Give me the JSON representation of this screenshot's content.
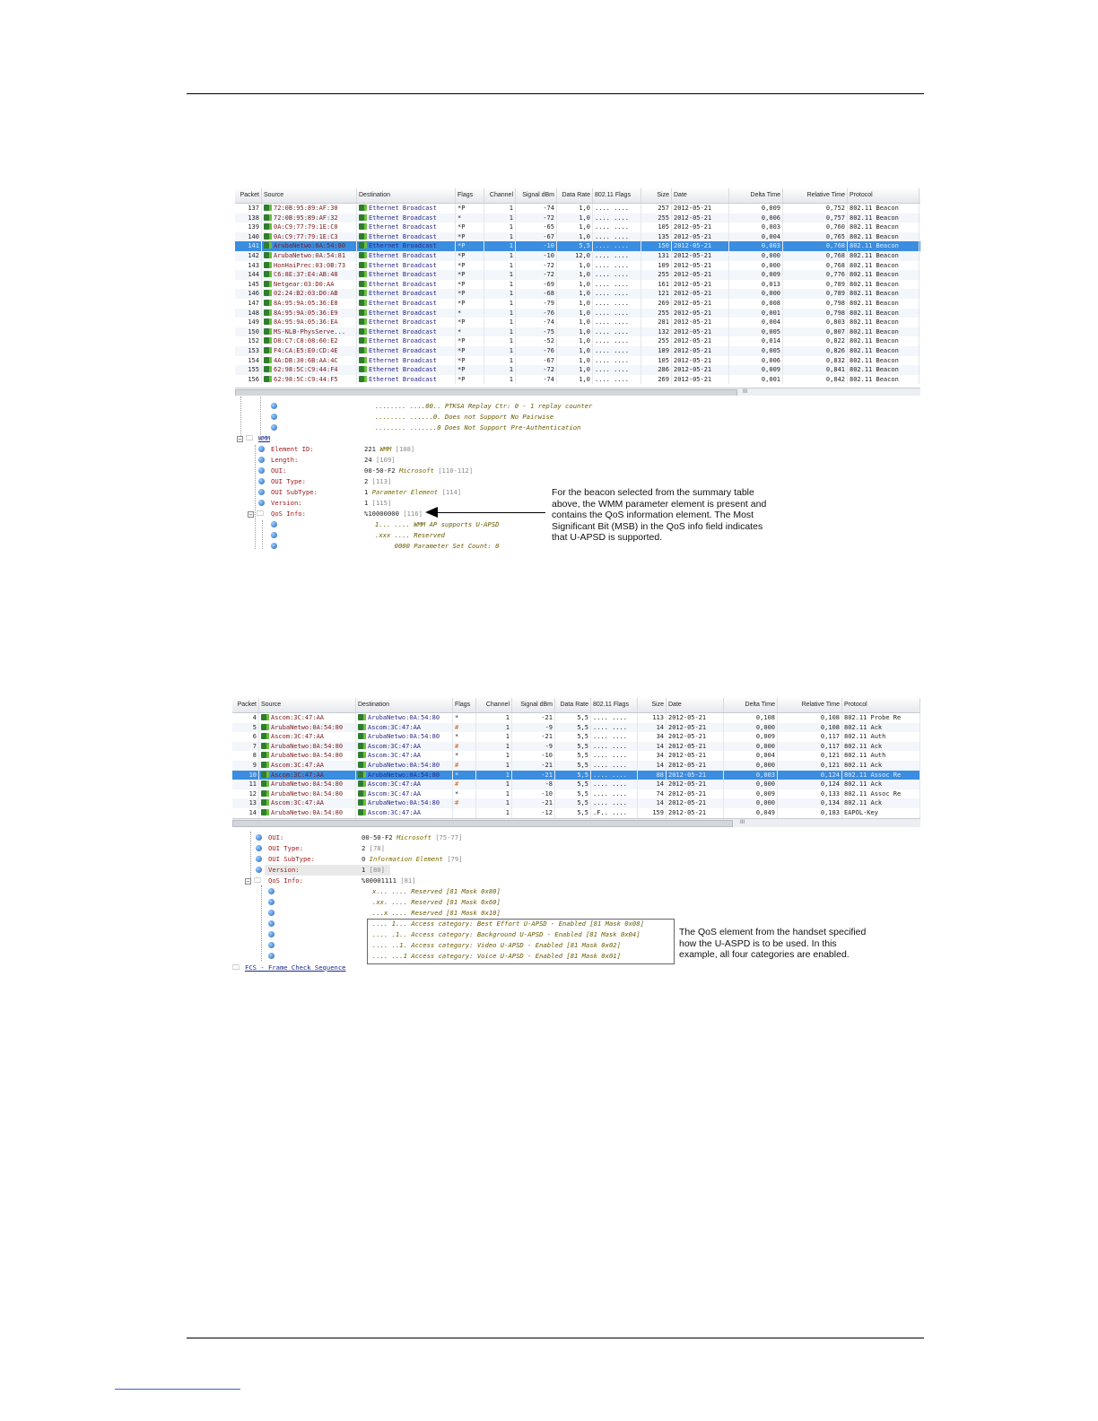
{
  "columns": [
    "Packet",
    "Source",
    "Destination",
    "Flags",
    "Channel",
    "Signal dBm",
    "Data Rate",
    "802.11 Flags",
    "Size",
    "Date",
    "Delta Time",
    "Relative Time",
    "Protocol"
  ],
  "table1": {
    "rows": [
      [
        "137",
        "72:0B:95:89:AF:30",
        "Ethernet Broadcast",
        "*P",
        "1",
        "-74",
        "1,0",
        ".... ....",
        "257",
        "2012-05-21",
        "0,009",
        "0,752",
        "802.11 Beacon"
      ],
      [
        "138",
        "72:0B:95:89:AF:32",
        "Ethernet Broadcast",
        "*",
        "1",
        "-72",
        "1,0",
        ".... ....",
        "255",
        "2012-05-21",
        "0,006",
        "0,757",
        "802.11 Beacon"
      ],
      [
        "139",
        "0A:C9:77:79:1E:C0",
        "Ethernet Broadcast",
        "*P",
        "1",
        "-65",
        "1,0",
        ".... ....",
        "105",
        "2012-05-21",
        "0,003",
        "0,760",
        "802.11 Beacon"
      ],
      [
        "140",
        "0A:C9:77:79:1E:C3",
        "Ethernet Broadcast",
        "*P",
        "1",
        "-67",
        "1,0",
        ".... ....",
        "135",
        "2012-05-21",
        "0,004",
        "0,765",
        "802.11 Beacon"
      ],
      [
        "141",
        "ArubaNetwo:0A:54:80",
        "Ethernet Broadcast",
        "*P",
        "1",
        "-10",
        "5,5",
        ".... ....",
        "150",
        "2012-05-21",
        "0,003",
        "0,768",
        "802.11 Beacon"
      ],
      [
        "142",
        "ArubaNetwo:0A:54:81",
        "Ethernet Broadcast",
        "*P",
        "1",
        "-10",
        "12,0",
        ".... ....",
        "131",
        "2012-05-21",
        "0,000",
        "0,768",
        "802.11 Beacon"
      ],
      [
        "143",
        "HonHaiPrec:03:0B:73",
        "Ethernet Broadcast",
        "*P",
        "1",
        "-72",
        "1,0",
        ".... ....",
        "109",
        "2012-05-21",
        "0,000",
        "0,768",
        "802.11 Beacon"
      ],
      [
        "144",
        "C6:8E:37:E4:AB:48",
        "Ethernet Broadcast",
        "*P",
        "1",
        "-72",
        "1,0",
        ".... ....",
        "255",
        "2012-05-21",
        "0,009",
        "0,776",
        "802.11 Beacon"
      ],
      [
        "145",
        "Netgear:03:D0:AA",
        "Ethernet Broadcast",
        "*P",
        "1",
        "-69",
        "1,0",
        ".... ....",
        "161",
        "2012-05-21",
        "0,013",
        "0,789",
        "802.11 Beacon"
      ],
      [
        "146",
        "02:24:B2:03:D0:AB",
        "Ethernet Broadcast",
        "*P",
        "1",
        "-68",
        "1,0",
        ".... ....",
        "121",
        "2012-05-21",
        "0,000",
        "0,789",
        "802.11 Beacon"
      ],
      [
        "147",
        "8A:95:9A:05:36:E8",
        "Ethernet Broadcast",
        "*P",
        "1",
        "-79",
        "1,0",
        ".... ....",
        "269",
        "2012-05-21",
        "0,008",
        "0,798",
        "802.11 Beacon"
      ],
      [
        "148",
        "8A:95:9A:05:36:E9",
        "Ethernet Broadcast",
        "*",
        "1",
        "-76",
        "1,0",
        ".... ....",
        "255",
        "2012-05-21",
        "0,001",
        "0,798",
        "802.11 Beacon"
      ],
      [
        "149",
        "8A:95:9A:05:36:EA",
        "Ethernet Broadcast",
        "*P",
        "1",
        "-74",
        "1,0",
        ".... ....",
        "281",
        "2012-05-21",
        "0,004",
        "0,803",
        "802.11 Beacon"
      ],
      [
        "150",
        "MS-NLB-PhysServe...",
        "Ethernet Broadcast",
        "*",
        "1",
        "-75",
        "1,0",
        ".... ....",
        "132",
        "2012-05-21",
        "0,005",
        "0,807",
        "802.11 Beacon"
      ],
      [
        "152",
        "D8:C7:C8:08:60:E2",
        "Ethernet Broadcast",
        "*P",
        "1",
        "-52",
        "1,0",
        ".... ....",
        "255",
        "2012-05-21",
        "0,014",
        "0,822",
        "802.11 Beacon"
      ],
      [
        "153",
        "F4:CA:E5:E0:CD:4E",
        "Ethernet Broadcast",
        "*P",
        "1",
        "-76",
        "1,0",
        ".... ....",
        "189",
        "2012-05-21",
        "0,005",
        "0,826",
        "802.11 Beacon"
      ],
      [
        "154",
        "4A:DB:30:6B:AA:4C",
        "Ethernet Broadcast",
        "*P",
        "1",
        "-67",
        "1,0",
        ".... ....",
        "105",
        "2012-05-21",
        "0,006",
        "0,832",
        "802.11 Beacon"
      ],
      [
        "155",
        "62:98:5C:C9:44:F4",
        "Ethernet Broadcast",
        "*P",
        "1",
        "-72",
        "1,0",
        ".... ....",
        "286",
        "2012-05-21",
        "0,009",
        "0,841",
        "802.11 Beacon"
      ],
      [
        "156",
        "62:98:5C:C9:44:F5",
        "Ethernet Broadcast",
        "*P",
        "1",
        "-74",
        "1,0",
        ".... ....",
        "269",
        "2012-05-21",
        "0,001",
        "0,842",
        "802.11 Beacon"
      ]
    ],
    "selected_packet": "141"
  },
  "tree1": {
    "bit_lines": [
      "........ ....00.. PTKSA Replay Ctr: 0 - 1 replay counter",
      "........ ......0. Does not Support No Pairwise",
      "........ .......0 Does Not Support Pre-Authentication"
    ],
    "group": "WMM",
    "fields": [
      {
        "name": "Element ID:",
        "value": "221",
        "desc": "WMM",
        "num": "[108]"
      },
      {
        "name": "Length:",
        "value": "24",
        "desc": "",
        "num": "[109]"
      },
      {
        "name": "OUI:",
        "value": "00-50-F2",
        "desc": "Microsoft",
        "num": "[110-112]"
      },
      {
        "name": "OUI Type:",
        "value": "2",
        "desc": "",
        "num": "[113]"
      },
      {
        "name": "OUI SubType:",
        "value": "1",
        "desc": "Parameter Element",
        "num": "[114]"
      },
      {
        "name": "Version:",
        "value": "1",
        "desc": "",
        "num": "[115]"
      },
      {
        "name": "QoS Info:",
        "value": "%10000000",
        "desc": "",
        "num": "[116]"
      }
    ],
    "qos_bits": [
      "1... .... WMM AP supports U-APSD",
      ".xxx .... Reserved",
      "     0000 Parameter Set Count: 0"
    ],
    "callout": "For the beacon selected from the summary table above, the WMM parameter element is present and contains the QoS information element. The Most Significant Bit (MSB) in the QoS info field indicates that U-APSD is supported."
  },
  "table2": {
    "rows": [
      [
        "4",
        "Ascom:3C:47:AA",
        "ArubaNetwo:0A:54:80",
        "*",
        "1",
        "-21",
        "5,5",
        ".... ....",
        "113",
        "2012-05-21",
        "0,108",
        "0,108",
        "802.11 Probe Re"
      ],
      [
        "5",
        "ArubaNetwo:0A:54:80",
        "Ascom:3C:47:AA",
        "#",
        "1",
        "-9",
        "5,5",
        ".... ....",
        "14",
        "2012-05-21",
        "0,000",
        "0,108",
        "802.11 Ack"
      ],
      [
        "6",
        "Ascom:3C:47:AA",
        "ArubaNetwo:0A:54:80",
        "*",
        "1",
        "-21",
        "5,5",
        ".... ....",
        "34",
        "2012-05-21",
        "0,009",
        "0,117",
        "802.11 Auth"
      ],
      [
        "7",
        "ArubaNetwo:0A:54:80",
        "Ascom:3C:47:AA",
        "#",
        "1",
        "-9",
        "5,5",
        ".... ....",
        "14",
        "2012-05-21",
        "0,000",
        "0,117",
        "802.11 Ack"
      ],
      [
        "8",
        "ArubaNetwo:0A:54:80",
        "Ascom:3C:47:AA",
        "*",
        "1",
        "-10",
        "5,5",
        ".... ....",
        "34",
        "2012-05-21",
        "0,004",
        "0,121",
        "802.11 Auth"
      ],
      [
        "9",
        "Ascom:3C:47:AA",
        "ArubaNetwo:0A:54:80",
        "#",
        "1",
        "-21",
        "5,5",
        ".... ....",
        "14",
        "2012-05-21",
        "0,000",
        "0,121",
        "802.11 Ack"
      ],
      [
        "10",
        "Ascom:3C:47:AA",
        "ArubaNetwo:0A:54:80",
        "*",
        "1",
        "-21",
        "5,5",
        ".... ....",
        "88",
        "2012-05-21",
        "0,003",
        "0,124",
        "802.11 Assoc Re"
      ],
      [
        "11",
        "ArubaNetwo:0A:54:80",
        "Ascom:3C:47:AA",
        "#",
        "1",
        "-8",
        "5,5",
        ".... ....",
        "14",
        "2012-05-21",
        "0,000",
        "0,124",
        "802.11 Ack"
      ],
      [
        "12",
        "ArubaNetwo:0A:54:80",
        "Ascom:3C:47:AA",
        "*",
        "1",
        "-10",
        "5,5",
        ".... ....",
        "74",
        "2012-05-21",
        "0,009",
        "0,133",
        "802.11 Assoc Re"
      ],
      [
        "13",
        "Ascom:3C:47:AA",
        "ArubaNetwo:0A:54:80",
        "#",
        "1",
        "-21",
        "5,5",
        ".... ....",
        "14",
        "2012-05-21",
        "0,000",
        "0,134",
        "802.11 Ack"
      ],
      [
        "14",
        "ArubaNetwo:0A:54:80",
        "Ascom:3C:47:AA",
        "",
        "1",
        "-12",
        "5,5",
        ".F.. ....",
        "159",
        "2012-05-21",
        "0,049",
        "0,183",
        "EAPOL-Key"
      ]
    ],
    "selected_packet": "10"
  },
  "tree2": {
    "fields": [
      {
        "name": "OUI:",
        "value": "00-50-F2",
        "desc": "Microsoft",
        "num": "[75-77]"
      },
      {
        "name": "OUI Type:",
        "value": "2",
        "desc": "",
        "num": "[78]"
      },
      {
        "name": "OUI SubType:",
        "value": "0",
        "desc": "Information Element",
        "num": "[79]"
      },
      {
        "name": "Version:",
        "value": "1",
        "desc": "",
        "num": "[80]"
      },
      {
        "name": "QoS Info:",
        "value": "%00001111",
        "desc": "",
        "num": "[81]"
      }
    ],
    "reserved_bits": [
      "x... .... Reserved [81 Mask 0x80]",
      ".xx. .... Reserved [81 Mask 0x60]",
      "...x .... Reserved [81 Mask 0x10]"
    ],
    "ac_bits": [
      ".... 1... Access category: Best Effort U-APSD - Enabled [81 Mask 0x08]",
      ".... .1.. Access category: Background U-APSD - Enabled [81 Mask 0x04]",
      ".... ..1. Access category: Video U-APSD - Enabled [81 Mask 0x02]",
      ".... ...1 Access category: Voice U-APSD - Enabled [81 Mask 0x01]"
    ],
    "fcs": "FCS - Frame Check Sequence",
    "callout": "The QoS element from the handset specified how the U-ASPD is to be used. In this example, all four categories are enabled."
  },
  "colors": {
    "selection": "#3b8de0",
    "source": "#7a1a1a",
    "destination": "#2a2a88",
    "beacon": "#1a2a8a"
  }
}
